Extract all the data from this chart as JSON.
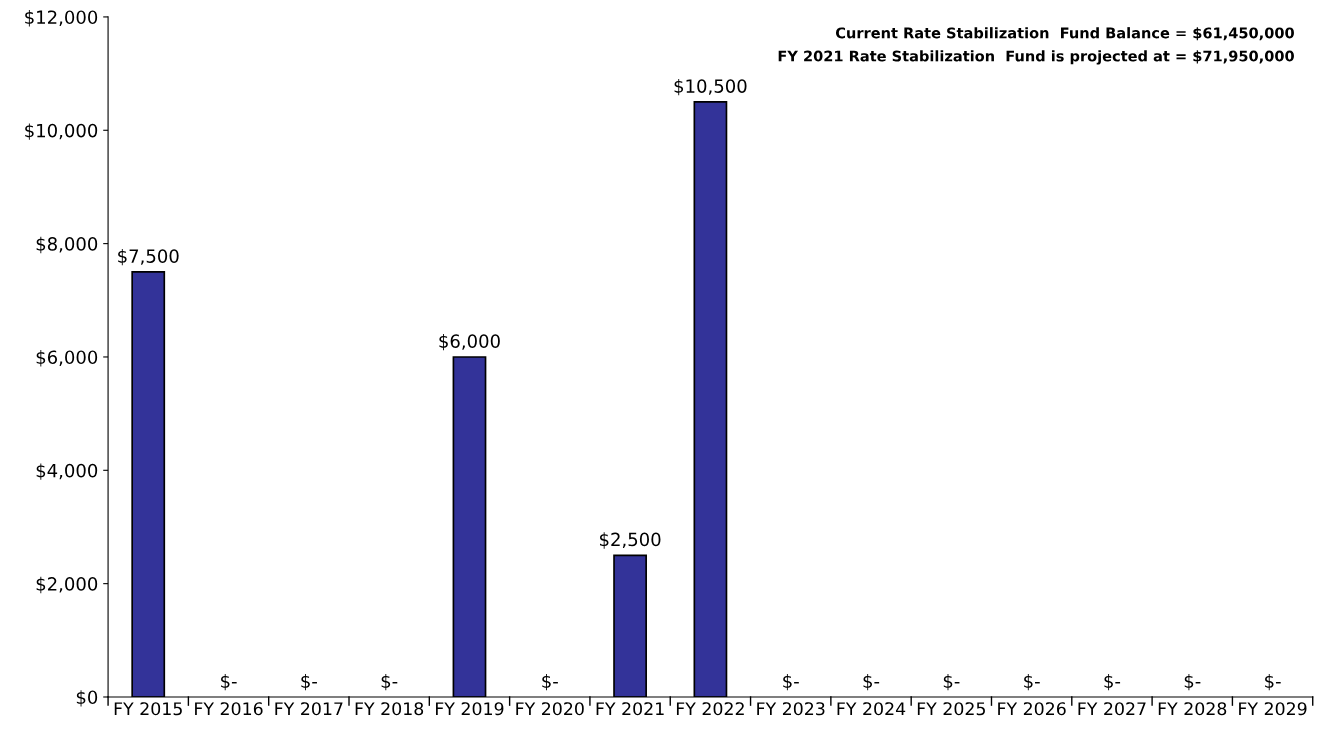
{
  "chart_data": {
    "type": "bar",
    "categories": [
      "FY 2015",
      "FY 2016",
      "FY 2017",
      "FY 2018",
      "FY 2019",
      "FY 2020",
      "FY 2021",
      "FY 2022",
      "FY 2023",
      "FY 2024",
      "FY 2025",
      "FY 2026",
      "FY 2027",
      "FY 2028",
      "FY 2029"
    ],
    "values": [
      7500,
      0,
      0,
      0,
      6000,
      0,
      2500,
      10500,
      0,
      0,
      0,
      0,
      0,
      0,
      0
    ],
    "value_labels": [
      "$7,500",
      "$-",
      "$-",
      "$-",
      "$6,000",
      "$-",
      "$2,500",
      "$10,500",
      "$-",
      "$-",
      "$-",
      "$-",
      "$-",
      "$-",
      "$-"
    ],
    "color": "#333399",
    "ylim": [
      0,
      12000
    ],
    "yticks": [
      {
        "value": 0,
        "label": "$0"
      },
      {
        "value": 2000,
        "label": "$2,000"
      },
      {
        "value": 4000,
        "label": "$4,000"
      },
      {
        "value": 6000,
        "label": "$6,000"
      },
      {
        "value": 8000,
        "label": "$8,000"
      },
      {
        "value": 10000,
        "label": "$10,000"
      },
      {
        "value": 12000,
        "label": "$12,000"
      }
    ],
    "annotations": [
      "Current Rate Stabilization  Fund Balance = $61,450,000",
      "FY 2021 Rate Stabilization  Fund is projected at = $71,950,000"
    ],
    "grid": false,
    "legend": false
  }
}
